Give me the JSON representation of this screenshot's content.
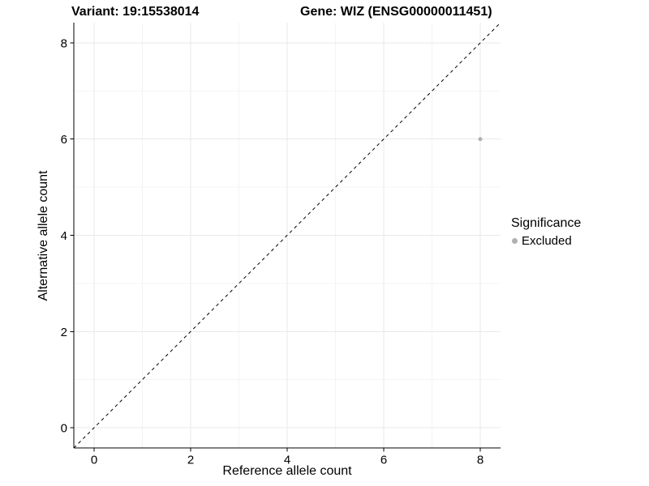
{
  "titles": {
    "variant": "Variant: 19:15538014",
    "gene": "Gene: WIZ (ENSG00000011451)"
  },
  "chart_data": {
    "type": "scatter",
    "xlabel": "Reference allele count",
    "ylabel": "Alternative allele count",
    "xlim": [
      -0.42,
      8.42
    ],
    "ylim": [
      -0.42,
      8.42
    ],
    "xticks": [
      0,
      2,
      4,
      6,
      8
    ],
    "yticks": [
      0,
      2,
      4,
      6,
      8
    ],
    "minor_xticks": [
      1,
      3,
      5,
      7
    ],
    "minor_yticks": [
      1,
      3,
      5,
      7
    ],
    "grid": "on",
    "points": [
      {
        "x": 8,
        "y": 6,
        "series": "Excluded"
      }
    ],
    "reference_line": {
      "type": "identity",
      "style": "dashed",
      "from": -0.42,
      "to": 8.42
    },
    "legend": {
      "title": "Significance",
      "position": "right",
      "entries": [
        {
          "label": "Excluded",
          "color": "#b0b0b0"
        }
      ]
    },
    "colors": {
      "point": "#b0b0b0",
      "grid_major": "#e9e9e9",
      "grid_minor": "#f4f4f4",
      "axis": "#000000",
      "tick_text": "#000000",
      "reference_line": "#000000"
    }
  }
}
